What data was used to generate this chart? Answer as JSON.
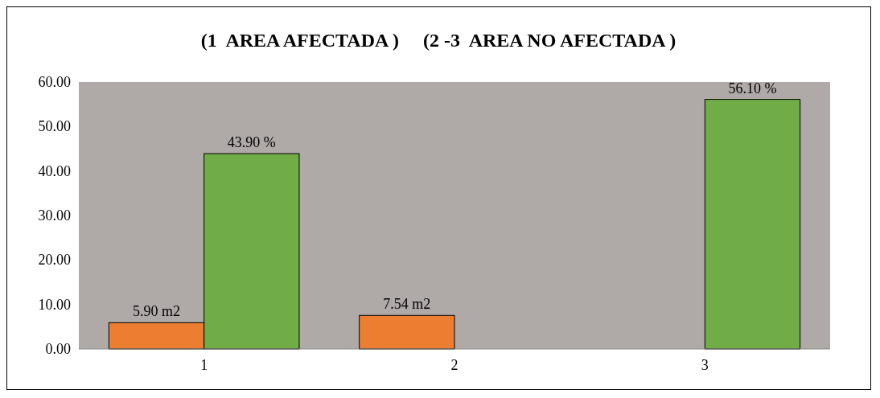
{
  "chart_data": {
    "type": "bar",
    "title": "(1  AREA AFECTADA )     (2 -3  AREA NO AFECTADA )",
    "categories": [
      "1",
      "2",
      "3"
    ],
    "series": [
      {
        "color": "#ed7d31",
        "values": [
          5.9,
          7.54,
          null
        ],
        "value_labels": [
          "5.90 m2",
          "7.54 m2",
          null
        ]
      },
      {
        "color": "#70ad47",
        "values": [
          43.9,
          null,
          56.1
        ],
        "value_labels": [
          "43.90 %",
          null,
          "56.10 %"
        ]
      }
    ],
    "ylim": [
      0,
      60
    ],
    "yticks": [
      {
        "value": 0,
        "label": "0.00"
      },
      {
        "value": 10,
        "label": "10.00"
      },
      {
        "value": 20,
        "label": "20.00"
      },
      {
        "value": 30,
        "label": "30.00"
      },
      {
        "value": 40,
        "label": "40.00"
      },
      {
        "value": 50,
        "label": "50.00"
      },
      {
        "value": 60,
        "label": "60.00"
      }
    ],
    "grid": false
  }
}
